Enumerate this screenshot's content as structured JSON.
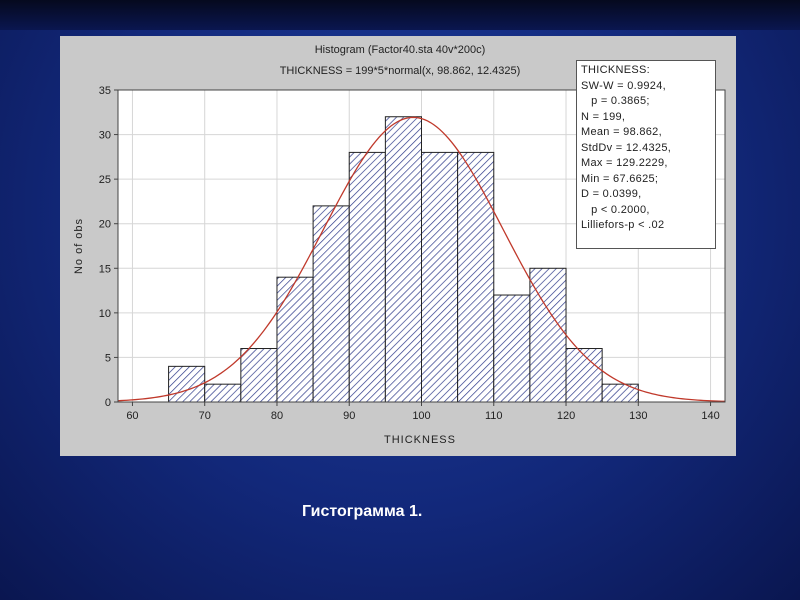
{
  "slide": {
    "caption": "Гистограмма 1."
  },
  "chart_data": {
    "type": "bar",
    "title": "Histogram (Factor40.sta 40v*200c)",
    "subtitle": "THICKNESS = 199*5*normal(x, 98.862, 12.4325)",
    "xlabel": "THICKNESS",
    "ylabel": "No of obs",
    "bin_edges": [
      65,
      70,
      75,
      80,
      85,
      90,
      95,
      100,
      105,
      110,
      115,
      120,
      125,
      130
    ],
    "values": [
      4,
      2,
      6,
      14,
      22,
      28,
      32,
      28,
      28,
      12,
      15,
      6,
      2
    ],
    "xlim": [
      58,
      142
    ],
    "ylim": [
      0,
      35
    ],
    "xticks": [
      60,
      70,
      80,
      90,
      100,
      110,
      120,
      130,
      140
    ],
    "yticks": [
      0,
      5,
      10,
      15,
      20,
      25,
      30,
      35
    ],
    "grid": true,
    "bar_fill": "hatched",
    "bar_color": "#2e3a8a",
    "curve": {
      "type": "normal",
      "n": 199,
      "bin_width": 5,
      "mean": 98.862,
      "sd": 12.4325,
      "color": "#c0392b"
    },
    "stats_box": {
      "lines": [
        "THICKNESS:",
        "SW-W = 0.9924,",
        "   p = 0.3865;",
        "N = 199,",
        "Mean = 98.862,",
        "StdDv = 12.4325,",
        "Max = 129.2229,",
        "Min = 67.6625;",
        "D = 0.0399,",
        "   p < 0.2000,",
        "Lilliefors-p < .02"
      ]
    }
  },
  "colors": {
    "background": "#12287a",
    "panel": "#c9c9c9",
    "plot_area": "#ffffff"
  }
}
